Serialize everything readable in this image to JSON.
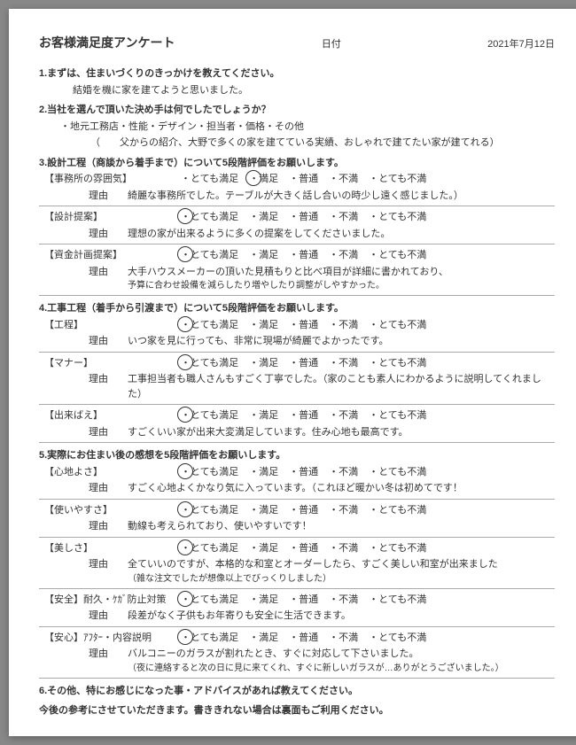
{
  "header": {
    "title": "お客様満足度アンケート",
    "dateLabel": "日付",
    "dateValue": "2021年7月12日"
  },
  "scaleOptions": [
    "・とても満足",
    "・満足",
    "・普通",
    "・不満",
    "・とても不満"
  ],
  "reasonLabel": "理由",
  "q1": {
    "heading": "1.まずは、住まいづくりのきっかけを教えてください。",
    "answer": "結婚を機に家を建てようと思いました。"
  },
  "q2": {
    "heading": "2.当社を選んで頂いた決め手は何でしたでしょうか？",
    "options": "・地元工務店・性能・デザイン・担当者・価格・その他",
    "answer": "（　　父からの紹介、大野で多くの家を建てている実績、おしゃれで建てたい家が建てれる）"
  },
  "q3": {
    "heading": "3.設計工程（商談から着手まで）について5段階評価をお願いします。",
    "items": [
      {
        "label": "【事務所の雰囲気】",
        "selected": 1,
        "reason": "綺麗な事務所でした。テーブルが大きく話し合いの時少し遠く感じました。）"
      },
      {
        "label": "【設計提案】",
        "selected": 0,
        "reason": "理想の家が出来るように多くの提案をしてくださいました。"
      },
      {
        "label": "【資金計画提案】",
        "selected": 0,
        "reason": "大手ハウスメーカーの頂いた見積もりと比べ項目が詳細に書かれており、\n予算に合わせ設備を減らしたり増やしたり調整がしやすかった。"
      }
    ]
  },
  "q4": {
    "heading": "4.工事工程（着手から引渡まで）について5段階評価をお願いします。",
    "items": [
      {
        "label": "【工程】",
        "selected": 0,
        "reason": "いつ家を見に行っても、非常に現場が綺麗でよかったです。"
      },
      {
        "label": "【マナー】",
        "selected": 0,
        "reason": "工事担当者も職人さんもすごく丁寧でした。（家のことも素人にわかるように説明してくれました）"
      },
      {
        "label": "【出来ばえ】",
        "selected": 0,
        "reason": "すごくいい家が出来大変満足しています。住み心地も最高です。"
      }
    ]
  },
  "q5": {
    "heading": "5.実際にお住まい後の感想を5段階評価をお願いします。",
    "items": [
      {
        "label": "【心地よさ】",
        "selected": 0,
        "reason": "すごく心地よくかなり気に入っています。（これほど暖かい冬は初めてです！"
      },
      {
        "label": "【使いやすさ】",
        "selected": 0,
        "reason": "動線も考えられており、使いやすいです！"
      },
      {
        "label": "【美しさ】",
        "selected": 0,
        "reason": "全ていいのですが、本格的な和室とオーダーしたら、すごく美しい和室が出来ました\n（雑な注文でしたが想像以上でびっくりしました）"
      },
      {
        "label": "【安全】耐久・ｹｶﾞ防止対策",
        "selected": 0,
        "reason": "段差がなく子供もお年寄りも安全に生活できます。"
      },
      {
        "label": "【安心】ｱﾌﾀｰ・内容説明",
        "selected": 0,
        "reason": "バルコニーのガラスが割れたとき、すぐに対応して下さいました。\n（夜に連絡すると次の日に見に来てくれ、すぐに新しいガラスが…ありがとうございました。）"
      }
    ]
  },
  "q6": {
    "line1": "6.その他、特にお感じになった事・アドバイスがあれば教えてください。",
    "line2": "今後の参考にさせていただきます。書ききれない場合は裏面もご利用ください。"
  }
}
